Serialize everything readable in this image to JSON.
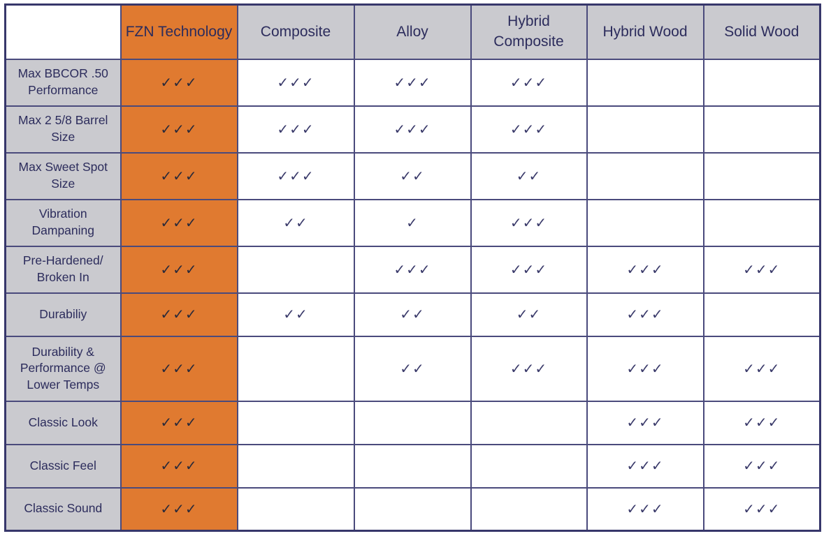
{
  "columns": [
    {
      "key": "fzn",
      "label": "FZN Technology"
    },
    {
      "key": "composite",
      "label": "Composite"
    },
    {
      "key": "alloy",
      "label": "Alloy"
    },
    {
      "key": "hybrid_composite",
      "label": "Hybrid Composite"
    },
    {
      "key": "hybrid_wood",
      "label": "Hybrid Wood"
    },
    {
      "key": "solid_wood",
      "label": "Solid Wood"
    }
  ],
  "rows": [
    {
      "label": "Max BBCOR .50 Performance",
      "cells": [
        "✓✓✓",
        "✓✓✓",
        "✓✓✓",
        "✓✓✓",
        "",
        ""
      ]
    },
    {
      "label": "Max 2 5/8 Barrel Size",
      "cells": [
        "✓✓✓",
        "✓✓✓",
        "✓✓✓",
        "✓✓✓",
        "",
        ""
      ]
    },
    {
      "label": "Max Sweet Spot Size",
      "cells": [
        "✓✓✓",
        "✓✓✓",
        "✓✓",
        "✓✓",
        "",
        ""
      ]
    },
    {
      "label": "Vibration Dampaning",
      "cells": [
        "✓✓✓",
        "✓✓",
        "✓",
        "✓✓✓",
        "",
        ""
      ]
    },
    {
      "label": "Pre-Hardened/ Broken In",
      "cells": [
        "✓✓✓",
        "",
        "✓✓✓",
        "✓✓✓",
        "✓✓✓",
        "✓✓✓"
      ]
    },
    {
      "label": "Durabiliy",
      "cells": [
        "✓✓✓",
        "✓✓",
        "✓✓",
        "✓✓",
        "✓✓✓",
        ""
      ]
    },
    {
      "label": "Durability & Performance @ Lower Temps",
      "cells": [
        "✓✓✓",
        "",
        "✓✓",
        "✓✓✓",
        "✓✓✓",
        "✓✓✓"
      ]
    },
    {
      "label": "Classic Look",
      "cells": [
        "✓✓✓",
        "",
        "",
        "",
        "✓✓✓",
        "✓✓✓"
      ]
    },
    {
      "label": "Classic Feel",
      "cells": [
        "✓✓✓",
        "",
        "",
        "",
        "✓✓✓",
        "✓✓✓"
      ]
    },
    {
      "label": "Classic Sound",
      "cells": [
        "✓✓✓",
        "",
        "",
        "",
        "✓✓✓",
        "✓✓✓"
      ]
    }
  ],
  "colors": {
    "header_bg": "#cacacf",
    "highlight_column": "#e07a30",
    "border": "#37376b",
    "text": "#2c2c5c"
  }
}
